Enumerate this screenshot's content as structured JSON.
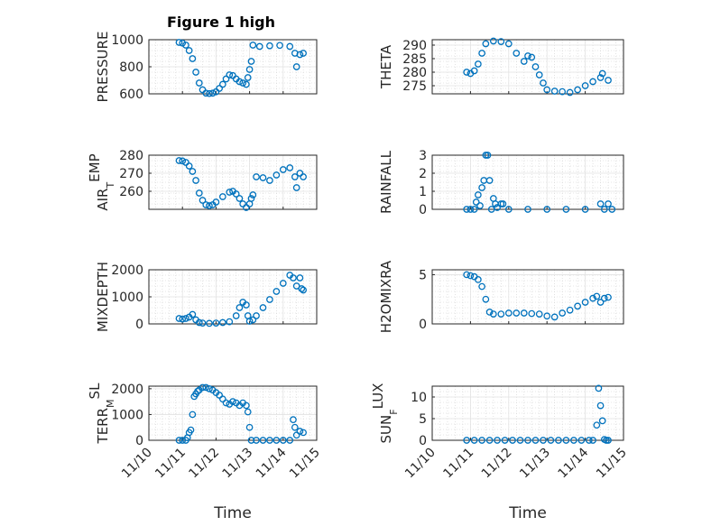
{
  "figure_title": "Figure 1 high",
  "colors": {
    "marker": "#0072BD",
    "axis": "#262626",
    "grid": "#d0d0d0",
    "background": "#ffffff"
  },
  "chart_data": [
    {
      "type": "scatter",
      "panel": "left-1",
      "ylabel": "PRESSURE",
      "ylabel_sub": "",
      "ylim": [
        600,
        1000
      ],
      "yticks": [
        600,
        800,
        1000
      ],
      "yticklabels": [
        "600",
        "800",
        "1000"
      ],
      "xlim": [
        0,
        5
      ],
      "show_xticklabels": false,
      "xlabel": "",
      "grid": true,
      "points": [
        [
          0.9,
          980
        ],
        [
          1.0,
          975
        ],
        [
          1.1,
          960
        ],
        [
          1.2,
          920
        ],
        [
          1.3,
          860
        ],
        [
          1.4,
          760
        ],
        [
          1.5,
          680
        ],
        [
          1.6,
          630
        ],
        [
          1.7,
          605
        ],
        [
          1.8,
          602
        ],
        [
          1.9,
          605
        ],
        [
          2.0,
          615
        ],
        [
          2.1,
          640
        ],
        [
          2.2,
          670
        ],
        [
          2.3,
          710
        ],
        [
          2.4,
          740
        ],
        [
          2.5,
          735
        ],
        [
          2.6,
          710
        ],
        [
          2.7,
          690
        ],
        [
          2.8,
          680
        ],
        [
          2.9,
          670
        ],
        [
          2.95,
          720
        ],
        [
          3.0,
          780
        ],
        [
          3.05,
          840
        ],
        [
          3.1,
          960
        ],
        [
          3.3,
          950
        ],
        [
          3.6,
          955
        ],
        [
          3.9,
          958
        ],
        [
          4.2,
          950
        ],
        [
          4.35,
          900
        ],
        [
          4.4,
          800
        ],
        [
          4.5,
          890
        ],
        [
          4.6,
          900
        ]
      ]
    },
    {
      "type": "scatter",
      "panel": "right-1",
      "ylabel": "THETA",
      "ylabel_sub": "",
      "ylim": [
        272,
        292
      ],
      "yticks": [
        275,
        280,
        285,
        290
      ],
      "yticklabels": [
        "275",
        "280",
        "285",
        "290"
      ],
      "xlim": [
        0,
        5
      ],
      "show_xticklabels": false,
      "xlabel": "",
      "grid": true,
      "points": [
        [
          0.9,
          280
        ],
        [
          1.0,
          279.5
        ],
        [
          1.1,
          280.5
        ],
        [
          1.2,
          283
        ],
        [
          1.3,
          287
        ],
        [
          1.4,
          290.5
        ],
        [
          1.6,
          291.5
        ],
        [
          1.8,
          291.3
        ],
        [
          2.0,
          290.5
        ],
        [
          2.2,
          287
        ],
        [
          2.4,
          284
        ],
        [
          2.5,
          286
        ],
        [
          2.6,
          285.5
        ],
        [
          2.7,
          282
        ],
        [
          2.8,
          279
        ],
        [
          2.9,
          276
        ],
        [
          3.0,
          273.5
        ],
        [
          3.2,
          273
        ],
        [
          3.4,
          272.8
        ],
        [
          3.6,
          272.5
        ],
        [
          3.8,
          273.5
        ],
        [
          4.0,
          275
        ],
        [
          4.2,
          276.5
        ],
        [
          4.4,
          278
        ],
        [
          4.45,
          279.5
        ],
        [
          4.6,
          277
        ]
      ]
    },
    {
      "type": "scatter",
      "panel": "left-2",
      "ylabel": "AIR",
      "ylabel_sub": "T",
      "ylabel_suffix": "EMP",
      "ylim": [
        250,
        280
      ],
      "yticks": [
        260,
        270,
        280
      ],
      "yticklabels": [
        "260",
        "270",
        "280"
      ],
      "xlim": [
        0,
        5
      ],
      "show_xticklabels": false,
      "xlabel": "",
      "grid": true,
      "points": [
        [
          0.9,
          277
        ],
        [
          1.0,
          276.8
        ],
        [
          1.1,
          276
        ],
        [
          1.2,
          274
        ],
        [
          1.3,
          271
        ],
        [
          1.4,
          266
        ],
        [
          1.5,
          259
        ],
        [
          1.6,
          255
        ],
        [
          1.7,
          252.5
        ],
        [
          1.8,
          252
        ],
        [
          1.9,
          252.5
        ],
        [
          2.0,
          254
        ],
        [
          2.2,
          257
        ],
        [
          2.4,
          259.5
        ],
        [
          2.5,
          260
        ],
        [
          2.6,
          258.5
        ],
        [
          2.7,
          256
        ],
        [
          2.8,
          253
        ],
        [
          2.9,
          251
        ],
        [
          3.0,
          253
        ],
        [
          3.05,
          256
        ],
        [
          3.1,
          258
        ],
        [
          3.2,
          268
        ],
        [
          3.4,
          267.5
        ],
        [
          3.6,
          266
        ],
        [
          3.8,
          269
        ],
        [
          4.0,
          272
        ],
        [
          4.2,
          273
        ],
        [
          4.35,
          268
        ],
        [
          4.4,
          262
        ],
        [
          4.5,
          270
        ],
        [
          4.6,
          268
        ]
      ]
    },
    {
      "type": "scatter",
      "panel": "right-2",
      "ylabel": "RAINFALL",
      "ylabel_sub": "",
      "ylim": [
        0,
        3
      ],
      "yticks": [
        0,
        1,
        2,
        3
      ],
      "yticklabels": [
        "0",
        "1",
        "2",
        "3"
      ],
      "xlim": [
        0,
        5
      ],
      "show_xticklabels": false,
      "xlabel": "",
      "grid": true,
      "points": [
        [
          0.9,
          0
        ],
        [
          1.0,
          0
        ],
        [
          1.1,
          0
        ],
        [
          1.15,
          0.4
        ],
        [
          1.2,
          0.8
        ],
        [
          1.25,
          0.2
        ],
        [
          1.3,
          1.2
        ],
        [
          1.35,
          1.6
        ],
        [
          1.4,
          3.0
        ],
        [
          1.45,
          3.0
        ],
        [
          1.5,
          1.6
        ],
        [
          1.55,
          0
        ],
        [
          1.6,
          0.6
        ],
        [
          1.65,
          0.3
        ],
        [
          1.7,
          0.1
        ],
        [
          1.8,
          0.3
        ],
        [
          1.85,
          0.3
        ],
        [
          2.0,
          0
        ],
        [
          2.5,
          0
        ],
        [
          3.0,
          0
        ],
        [
          3.5,
          0
        ],
        [
          4.0,
          0
        ],
        [
          4.4,
          0.3
        ],
        [
          4.5,
          0
        ],
        [
          4.6,
          0.3
        ],
        [
          4.7,
          0
        ]
      ]
    },
    {
      "type": "scatter",
      "panel": "left-3",
      "ylabel": "MIXDEPTH",
      "ylabel_sub": "",
      "ylim": [
        0,
        2000
      ],
      "yticks": [
        0,
        1000,
        2000
      ],
      "yticklabels": [
        "0",
        "1000",
        "2000"
      ],
      "xlim": [
        0,
        5
      ],
      "show_xticklabels": false,
      "xlabel": "",
      "grid": true,
      "points": [
        [
          0.9,
          200
        ],
        [
          1.0,
          180
        ],
        [
          1.1,
          200
        ],
        [
          1.2,
          250
        ],
        [
          1.3,
          350
        ],
        [
          1.4,
          150
        ],
        [
          1.5,
          50
        ],
        [
          1.6,
          30
        ],
        [
          1.8,
          20
        ],
        [
          2.0,
          30
        ],
        [
          2.2,
          50
        ],
        [
          2.4,
          80
        ],
        [
          2.6,
          300
        ],
        [
          2.7,
          600
        ],
        [
          2.8,
          800
        ],
        [
          2.9,
          700
        ],
        [
          2.95,
          300
        ],
        [
          3.0,
          100
        ],
        [
          3.1,
          150
        ],
        [
          3.2,
          300
        ],
        [
          3.4,
          600
        ],
        [
          3.6,
          900
        ],
        [
          3.8,
          1200
        ],
        [
          4.0,
          1500
        ],
        [
          4.2,
          1800
        ],
        [
          4.3,
          1700
        ],
        [
          4.4,
          1400
        ],
        [
          4.5,
          1700
        ],
        [
          4.55,
          1300
        ],
        [
          4.6,
          1250
        ]
      ]
    },
    {
      "type": "scatter",
      "panel": "right-3",
      "ylabel": "H2OMIXRA",
      "ylabel_sub": "",
      "ylim": [
        0,
        5.5
      ],
      "yticks": [
        0,
        5
      ],
      "yticklabels": [
        "0",
        "5"
      ],
      "xlim": [
        0,
        5
      ],
      "show_xticklabels": false,
      "xlabel": "",
      "grid": true,
      "points": [
        [
          0.9,
          5.0
        ],
        [
          1.0,
          4.9
        ],
        [
          1.1,
          4.8
        ],
        [
          1.2,
          4.5
        ],
        [
          1.3,
          3.8
        ],
        [
          1.4,
          2.5
        ],
        [
          1.5,
          1.2
        ],
        [
          1.6,
          1.0
        ],
        [
          1.8,
          1.0
        ],
        [
          2.0,
          1.1
        ],
        [
          2.2,
          1.1
        ],
        [
          2.4,
          1.1
        ],
        [
          2.6,
          1.05
        ],
        [
          2.8,
          1.0
        ],
        [
          3.0,
          0.8
        ],
        [
          3.2,
          0.7
        ],
        [
          3.4,
          1.1
        ],
        [
          3.6,
          1.4
        ],
        [
          3.8,
          1.8
        ],
        [
          4.0,
          2.2
        ],
        [
          4.2,
          2.6
        ],
        [
          4.3,
          2.8
        ],
        [
          4.4,
          2.2
        ],
        [
          4.5,
          2.6
        ],
        [
          4.6,
          2.7
        ]
      ]
    },
    {
      "type": "scatter",
      "panel": "left-4",
      "ylabel": "TERR",
      "ylabel_sub": "M",
      "ylabel_suffix": "SL",
      "ylim": [
        0,
        2100
      ],
      "yticks": [
        0,
        1000,
        2000
      ],
      "yticklabels": [
        "0",
        "1000",
        "2000"
      ],
      "xlim": [
        0,
        5
      ],
      "show_xticklabels": true,
      "xlabel": "Time",
      "xticks": [
        0,
        1,
        2,
        3,
        4,
        5
      ],
      "xticklabels": [
        "11/10",
        "11/11",
        "11/12",
        "11/13",
        "11/14",
        "11/15"
      ],
      "grid": true,
      "points": [
        [
          0.9,
          0
        ],
        [
          1.0,
          0
        ],
        [
          1.1,
          0
        ],
        [
          1.15,
          100
        ],
        [
          1.2,
          300
        ],
        [
          1.25,
          400
        ],
        [
          1.3,
          1000
        ],
        [
          1.35,
          1700
        ],
        [
          1.4,
          1800
        ],
        [
          1.45,
          1900
        ],
        [
          1.5,
          1950
        ],
        [
          1.6,
          2050
        ],
        [
          1.7,
          2050
        ],
        [
          1.8,
          2000
        ],
        [
          1.9,
          1950
        ],
        [
          2.0,
          1850
        ],
        [
          2.1,
          1750
        ],
        [
          2.2,
          1600
        ],
        [
          2.3,
          1450
        ],
        [
          2.4,
          1400
        ],
        [
          2.5,
          1500
        ],
        [
          2.6,
          1450
        ],
        [
          2.7,
          1350
        ],
        [
          2.8,
          1450
        ],
        [
          2.9,
          1350
        ],
        [
          2.95,
          1100
        ],
        [
          3.0,
          500
        ],
        [
          3.05,
          0
        ],
        [
          3.2,
          0
        ],
        [
          3.4,
          0
        ],
        [
          3.6,
          0
        ],
        [
          3.8,
          0
        ],
        [
          4.0,
          0
        ],
        [
          4.2,
          0
        ],
        [
          4.3,
          800
        ],
        [
          4.35,
          500
        ],
        [
          4.4,
          200
        ],
        [
          4.5,
          350
        ],
        [
          4.6,
          300
        ]
      ]
    },
    {
      "type": "scatter",
      "panel": "right-4",
      "ylabel": "SUN",
      "ylabel_sub": "F",
      "ylabel_suffix": "LUX",
      "ylim": [
        0,
        12.5
      ],
      "yticks": [
        0,
        5,
        10
      ],
      "yticklabels": [
        "0",
        "5",
        "10"
      ],
      "xlim": [
        0,
        5
      ],
      "show_xticklabels": true,
      "xlabel": "Time",
      "xticks": [
        0,
        1,
        2,
        3,
        4,
        5
      ],
      "xticklabels": [
        "11/10",
        "11/11",
        "11/12",
        "11/13",
        "11/14",
        "11/15"
      ],
      "grid": true,
      "points": [
        [
          0.9,
          0
        ],
        [
          1.1,
          0
        ],
        [
          1.3,
          0
        ],
        [
          1.5,
          0
        ],
        [
          1.7,
          0
        ],
        [
          1.9,
          0
        ],
        [
          2.1,
          0
        ],
        [
          2.3,
          0
        ],
        [
          2.5,
          0
        ],
        [
          2.7,
          0
        ],
        [
          2.9,
          0
        ],
        [
          3.1,
          0
        ],
        [
          3.3,
          0
        ],
        [
          3.5,
          0
        ],
        [
          3.7,
          0
        ],
        [
          3.9,
          0
        ],
        [
          4.1,
          0
        ],
        [
          4.2,
          0
        ],
        [
          4.3,
          3.5
        ],
        [
          4.35,
          12.0
        ],
        [
          4.4,
          8.0
        ],
        [
          4.45,
          4.5
        ],
        [
          4.5,
          0.2
        ],
        [
          4.55,
          0
        ],
        [
          4.6,
          0
        ]
      ]
    }
  ]
}
